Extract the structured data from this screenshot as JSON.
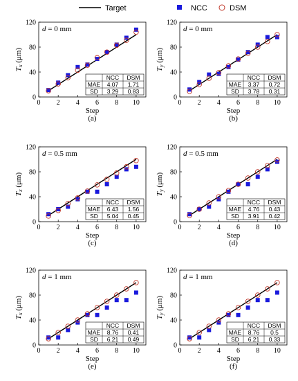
{
  "legend": {
    "target": "Target",
    "ncc": "NCC",
    "dsm": "DSM"
  },
  "colors": {
    "target_line": "#000000",
    "ncc": "#1a1adc",
    "dsm": "#c0392b"
  },
  "chart_data": [
    {
      "type": "scatter",
      "panel_label": "d = 0 mm",
      "caption": "(a)",
      "xlabel": "Step",
      "ylabel": "T_x (μm)",
      "xlim": [
        0,
        11
      ],
      "ylim": [
        0,
        120
      ],
      "xticks": [
        0,
        2,
        4,
        6,
        8,
        10
      ],
      "yticks": [
        0,
        40,
        80,
        120
      ],
      "series": [
        {
          "name": "Target",
          "x": [
            1,
            10
          ],
          "y": [
            10,
            100
          ]
        },
        {
          "name": "NCC",
          "x": [
            1,
            2,
            3,
            4,
            5,
            6,
            7,
            8,
            9,
            10
          ],
          "y": [
            11,
            23,
            35,
            48,
            52,
            61,
            72,
            84,
            95,
            108
          ]
        },
        {
          "name": "DSM",
          "x": [
            1,
            2,
            3,
            4,
            5,
            6,
            7,
            8,
            9,
            10
          ],
          "y": [
            10,
            21,
            31,
            43,
            51,
            63,
            72,
            83,
            91,
            104
          ]
        }
      ],
      "table": {
        "headers": [
          "",
          "NCC",
          "DSM"
        ],
        "rows": [
          [
            "MAE",
            "4.07",
            "1.71"
          ],
          [
            "SD",
            "3.29",
            "0.83"
          ]
        ]
      }
    },
    {
      "type": "scatter",
      "panel_label": "d = 0 mm",
      "caption": "(b)",
      "xlabel": "Step",
      "ylabel": "T_y (μm)",
      "xlim": [
        0,
        11
      ],
      "ylim": [
        0,
        120
      ],
      "xticks": [
        0,
        2,
        4,
        6,
        8,
        10
      ],
      "yticks": [
        0,
        40,
        80,
        120
      ],
      "series": [
        {
          "name": "Target",
          "x": [
            1,
            10
          ],
          "y": [
            10,
            100
          ]
        },
        {
          "name": "NCC",
          "x": [
            1,
            2,
            3,
            4,
            5,
            6,
            7,
            8,
            9,
            10
          ],
          "y": [
            12,
            24,
            36,
            37,
            48,
            60,
            72,
            84,
            96,
            96
          ]
        },
        {
          "name": "DSM",
          "x": [
            1,
            2,
            3,
            4,
            5,
            6,
            7,
            8,
            9,
            10
          ],
          "y": [
            9,
            20,
            30,
            39,
            50,
            61,
            70,
            80,
            89,
            100
          ]
        }
      ],
      "table": {
        "headers": [
          "",
          "NCC",
          "DSM"
        ],
        "rows": [
          [
            "MAE",
            "3.37",
            "0.72"
          ],
          [
            "SD",
            "3.78",
            "0.31"
          ]
        ]
      }
    },
    {
      "type": "scatter",
      "panel_label": "d = 0.5 mm",
      "caption": "(c)",
      "xlabel": "Step",
      "ylabel": "T_x (μm)",
      "xlim": [
        0,
        11
      ],
      "ylim": [
        0,
        120
      ],
      "xticks": [
        0,
        2,
        4,
        6,
        8,
        10
      ],
      "yticks": [
        0,
        40,
        80,
        120
      ],
      "series": [
        {
          "name": "Target",
          "x": [
            1,
            10
          ],
          "y": [
            10,
            100
          ]
        },
        {
          "name": "NCC",
          "x": [
            1,
            2,
            3,
            4,
            5,
            6,
            7,
            8,
            9,
            10
          ],
          "y": [
            12,
            20,
            24,
            36,
            48,
            48,
            60,
            72,
            84,
            88
          ]
        },
        {
          "name": "DSM",
          "x": [
            1,
            2,
            3,
            4,
            5,
            6,
            7,
            8,
            9,
            10
          ],
          "y": [
            9,
            18,
            29,
            38,
            49,
            59,
            68,
            78,
            88,
            98
          ]
        }
      ],
      "table": {
        "headers": [
          "",
          "NCC",
          "DSM"
        ],
        "rows": [
          [
            "MAE",
            "6.43",
            "1.56"
          ],
          [
            "SD",
            "5.04",
            "0.45"
          ]
        ]
      }
    },
    {
      "type": "scatter",
      "panel_label": "d = 0.5 mm",
      "caption": "(d)",
      "xlabel": "Step",
      "ylabel": "T_y (μm)",
      "xlim": [
        0,
        11
      ],
      "ylim": [
        0,
        120
      ],
      "xticks": [
        0,
        2,
        4,
        6,
        8,
        10
      ],
      "yticks": [
        0,
        40,
        80,
        120
      ],
      "series": [
        {
          "name": "Target",
          "x": [
            1,
            10
          ],
          "y": [
            10,
            100
          ]
        },
        {
          "name": "NCC",
          "x": [
            1,
            2,
            3,
            4,
            5,
            6,
            7,
            8,
            9,
            10
          ],
          "y": [
            12,
            20,
            24,
            36,
            48,
            60,
            60,
            72,
            84,
            96
          ]
        },
        {
          "name": "DSM",
          "x": [
            1,
            2,
            3,
            4,
            5,
            6,
            7,
            8,
            9,
            10
          ],
          "y": [
            10,
            20,
            30,
            40,
            50,
            60,
            70,
            80,
            90,
            99
          ]
        }
      ],
      "table": {
        "headers": [
          "",
          "NCC",
          "DSM"
        ],
        "rows": [
          [
            "MAE",
            "4.76",
            "0.43"
          ],
          [
            "SD",
            "3.91",
            "0.42"
          ]
        ]
      }
    },
    {
      "type": "scatter",
      "panel_label": "d = 1 mm",
      "caption": "(e)",
      "xlabel": "Step",
      "ylabel": "T_x (μm)",
      "xlim": [
        0,
        11
      ],
      "ylim": [
        0,
        120
      ],
      "xticks": [
        0,
        2,
        4,
        6,
        8,
        10
      ],
      "yticks": [
        0,
        40,
        80,
        120
      ],
      "series": [
        {
          "name": "Target",
          "x": [
            1,
            10
          ],
          "y": [
            10,
            100
          ]
        },
        {
          "name": "NCC",
          "x": [
            1,
            2,
            3,
            4,
            5,
            6,
            7,
            8,
            9,
            10
          ],
          "y": [
            12,
            12,
            24,
            36,
            48,
            48,
            60,
            72,
            72,
            84
          ]
        },
        {
          "name": "DSM",
          "x": [
            1,
            2,
            3,
            4,
            5,
            6,
            7,
            8,
            9,
            10
          ],
          "y": [
            10,
            20,
            30,
            40,
            50,
            60,
            70,
            80,
            90,
            100
          ]
        }
      ],
      "table": {
        "headers": [
          "",
          "NCC",
          "DSM"
        ],
        "rows": [
          [
            "MAE",
            "8.76",
            "0.41"
          ],
          [
            "SD",
            "6.21",
            "0.49"
          ]
        ]
      }
    },
    {
      "type": "scatter",
      "panel_label": "d = 1 mm",
      "caption": "(f)",
      "xlabel": "Step",
      "ylabel": "T_y (μm)",
      "xlim": [
        0,
        11
      ],
      "ylim": [
        0,
        120
      ],
      "xticks": [
        0,
        2,
        4,
        6,
        8,
        10
      ],
      "yticks": [
        0,
        40,
        80,
        120
      ],
      "series": [
        {
          "name": "Target",
          "x": [
            1,
            10
          ],
          "y": [
            10,
            100
          ]
        },
        {
          "name": "NCC",
          "x": [
            1,
            2,
            3,
            4,
            5,
            6,
            7,
            8,
            9,
            10
          ],
          "y": [
            12,
            12,
            24,
            36,
            48,
            48,
            60,
            72,
            72,
            84
          ]
        },
        {
          "name": "DSM",
          "x": [
            1,
            2,
            3,
            4,
            5,
            6,
            7,
            8,
            9,
            10
          ],
          "y": [
            10,
            20,
            30,
            40,
            50,
            60,
            70,
            80,
            90,
            100
          ]
        }
      ],
      "table": {
        "headers": [
          "",
          "NCC",
          "DSM"
        ],
        "rows": [
          [
            "MAE",
            "8.76",
            "0.5"
          ],
          [
            "SD",
            "6.21",
            "0.33"
          ]
        ]
      }
    }
  ]
}
